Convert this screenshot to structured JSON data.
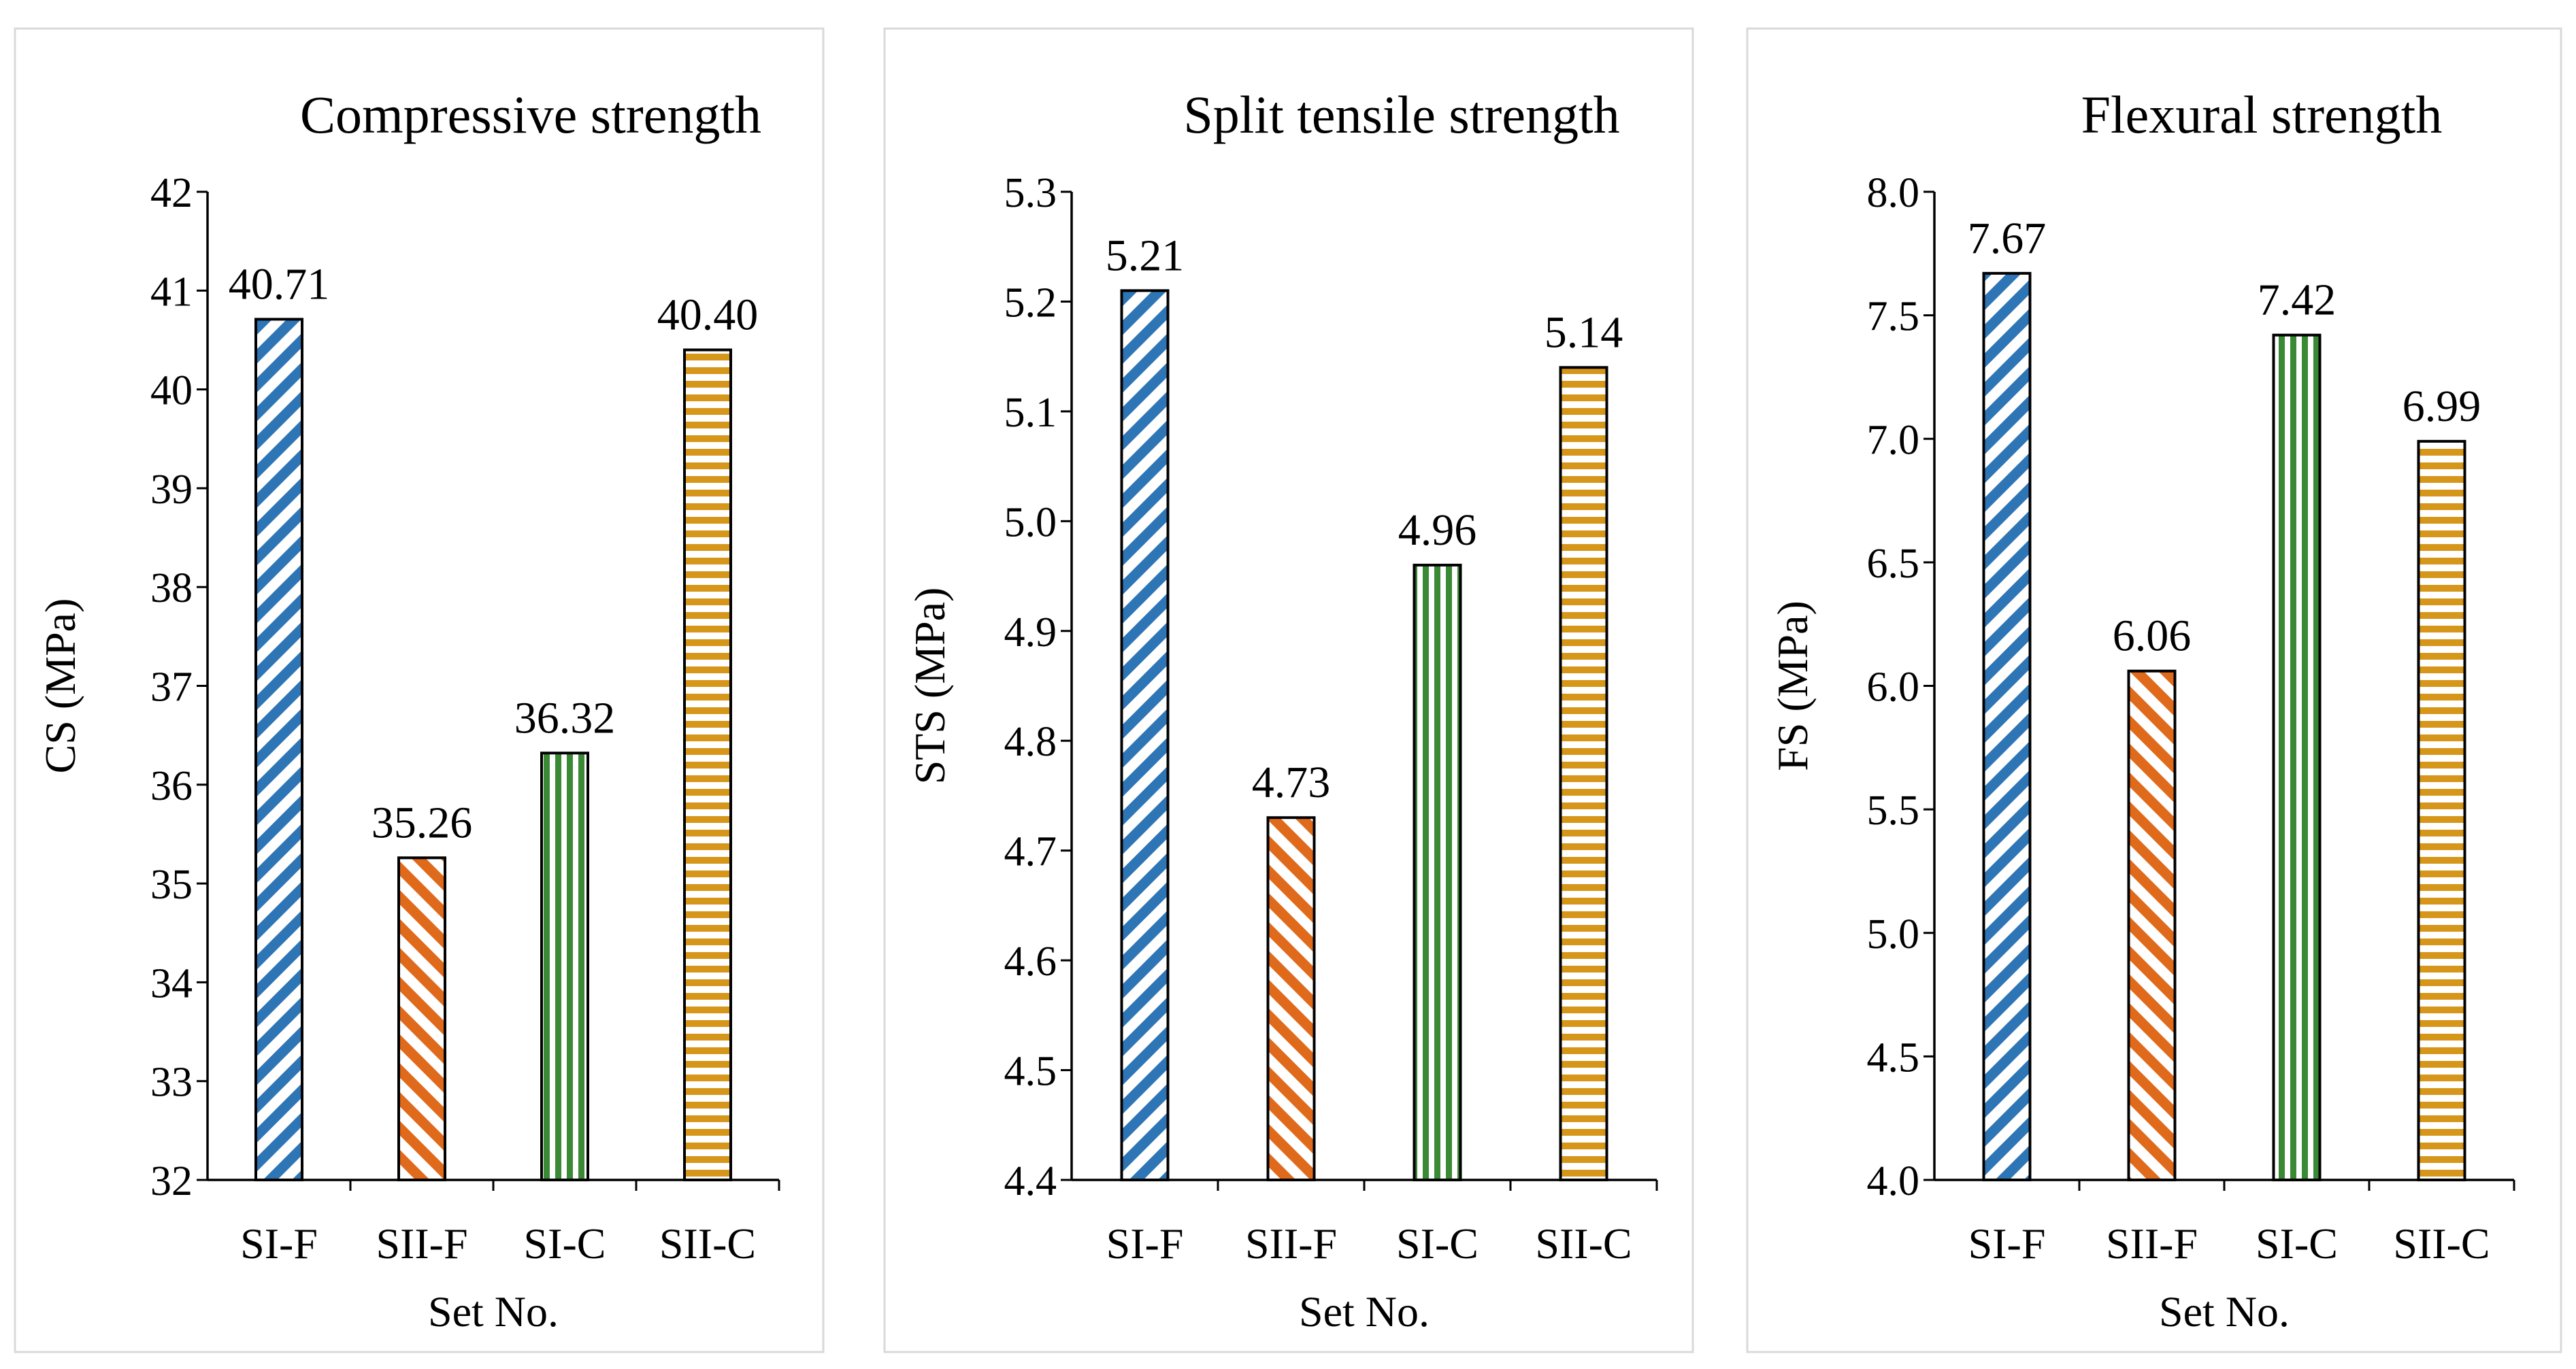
{
  "chart_data": [
    {
      "type": "bar",
      "title": "Compressive strength",
      "xlabel": "Set No.",
      "ylabel": "CS (MPa)",
      "categories": [
        "SI-F",
        "SII-F",
        "SI-C",
        "SII-C"
      ],
      "values": [
        40.71,
        35.26,
        36.32,
        40.4
      ],
      "value_labels": [
        "40.71",
        "35.26",
        "36.32",
        "40.40"
      ],
      "ylim": [
        32,
        42
      ],
      "yticks": [
        32,
        33,
        34,
        35,
        36,
        37,
        38,
        39,
        40,
        41,
        42
      ],
      "ytick_labels": [
        "32",
        "33",
        "34",
        "35",
        "36",
        "37",
        "38",
        "39",
        "40",
        "41",
        "42"
      ],
      "grid": false
    },
    {
      "type": "bar",
      "title": "Split tensile strength",
      "xlabel": "Set No.",
      "ylabel": "STS (MPa)",
      "categories": [
        "SI-F",
        "SII-F",
        "SI-C",
        "SII-C"
      ],
      "values": [
        5.21,
        4.73,
        4.96,
        5.14
      ],
      "value_labels": [
        "5.21",
        "4.73",
        "4.96",
        "5.14"
      ],
      "ylim": [
        4.4,
        5.3
      ],
      "yticks": [
        4.4,
        4.5,
        4.6,
        4.7,
        4.8,
        4.9,
        5.0,
        5.1,
        5.2,
        5.3
      ],
      "ytick_labels": [
        "4.4",
        "4.5",
        "4.6",
        "4.7",
        "4.8",
        "4.9",
        "5.0",
        "5.1",
        "5.2",
        "5.3"
      ],
      "grid": false
    },
    {
      "type": "bar",
      "title": "Flexural strength",
      "xlabel": "Set No.",
      "ylabel": "FS (MPa)",
      "categories": [
        "SI-F",
        "SII-F",
        "SI-C",
        "SII-C"
      ],
      "values": [
        7.67,
        6.06,
        7.42,
        6.99
      ],
      "value_labels": [
        "7.67",
        "6.06",
        "7.42",
        "6.99"
      ],
      "ylim": [
        4.0,
        8.0
      ],
      "yticks": [
        4.0,
        4.5,
        5.0,
        5.5,
        6.0,
        6.5,
        7.0,
        7.5,
        8.0
      ],
      "ytick_labels": [
        "4.0",
        "4.5",
        "5.0",
        "5.5",
        "6.0",
        "6.5",
        "7.0",
        "7.5",
        "8.0"
      ],
      "grid": false
    }
  ],
  "bar_styles": [
    {
      "category": "SI-F",
      "pattern": "diagonal-down",
      "color": "#2E75B6"
    },
    {
      "category": "SII-F",
      "pattern": "diagonal-up",
      "color": "#E06A1B"
    },
    {
      "category": "SI-C",
      "pattern": "vertical",
      "color": "#3A8A35"
    },
    {
      "category": "SII-C",
      "pattern": "horizontal",
      "color": "#D6961A"
    }
  ]
}
